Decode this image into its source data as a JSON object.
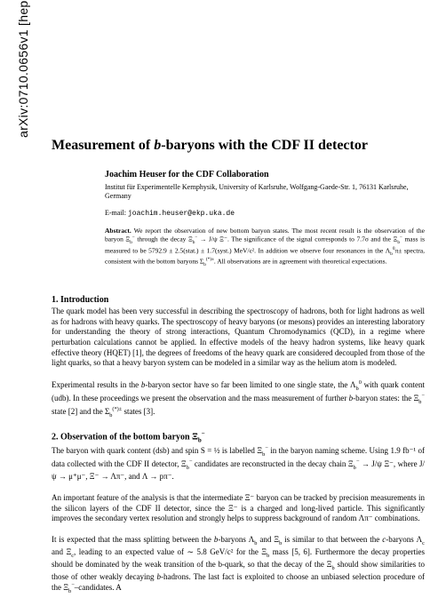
{
  "arxiv_id": "arXiv:0710.0656v1  [hep-ex]  2 Oct 2007",
  "title_prefix": "Measurement of ",
  "title_italic": "b",
  "title_suffix": "-baryons with the CDF II detector",
  "authors": "Joachim Heuser for the CDF Collaboration",
  "affiliation": "Institut für Experimentelle Kernphysik, University of Karlsruhe, Wolfgang-Gaede-Str. 1, 76131 Karlsruhe, Germany",
  "email_label": "E-mail: ",
  "email": "joachim.heuser@ekp.uka.de",
  "abstract_label": "Abstract.",
  "abstract_body": "   We report the observation of new bottom baryon states. The most recent result is the observation of the baryon Ξ",
  "abstract_body2": " through the decay Ξ",
  "abstract_body3": " → J/ψ Ξ⁻. The significance of the signal corresponds to 7.7σ and the Ξ",
  "abstract_body4": " mass is measured to be 5792.9 ± 2.5(stat.) ± 1.7(syst.) MeV/c². In addition we observe four resonances in the Λ",
  "abstract_body5": "π± spectra, consistent with the bottom baryons Σ",
  "abstract_body6": ". All observations are in agreement with theoretical expectations.",
  "section1_heading": "1. Introduction",
  "section1_p1a": "The quark model has been very successful in describing the spectroscopy of hadrons, both for light hadrons as well as for hadrons with heavy quarks. The spectroscopy of heavy baryons (or mesons) provides an interesting laboratory for understanding the theory of strong interactions, Quantum Chromodynamics (QCD), in a regime where perturbation calculations cannot be applied. In effective models of the heavy hadron systems, like heavy quark effective theory (HQET) [1], the degrees of freedoms of the heavy quark are considered decoupled from those of the light quarks, so that a heavy baryon system can be modeled in a similar way as the helium atom is modeled.",
  "section1_p2a": "Experimental results in the ",
  "section1_p2b": "-baryon sector have so far been limited to one single state, the Λ",
  "section1_p2c": " with quark content (udb). In these proceedings we present the observation and the mass measurement of further ",
  "section1_p2d": "-baryon states: the Ξ",
  "section1_p2e": " state [2] and the Σ",
  "section1_p2f": " states [3].",
  "section2_heading_a": "2. Observation of the bottom baryon ",
  "section2_heading_b": "Ξ",
  "section2_p1a": "The baryon with quark content (dsb) and spin S = ½ is labelled Ξ",
  "section2_p1b": " in the baryon naming scheme. Using 1.9 fb⁻¹ of data collected with the CDF II detector, Ξ",
  "section2_p1c": " candidates are reconstructed in the decay chain Ξ",
  "section2_p1d": " → J/ψ Ξ⁻, where J/ψ → μ⁺μ⁻, Ξ⁻ → Λπ⁻, and Λ → pπ⁻.",
  "section2_p2a": "An important feature of the analysis is that the intermediate Ξ⁻ baryon can be tracked by precision measurements in the silicon layers of the CDF II detector, since the Ξ⁻ is a charged and long-lived particle. This significantly improves the secondary vertex resolution and strongly helps to suppress background of random Λπ⁻ combinations.",
  "section2_p3a": "It is expected that the mass splitting between the ",
  "section2_p3b": "-baryons Λ",
  "section2_p3c": " and Ξ",
  "section2_p3d": " is similar to that between the ",
  "section2_p3e": "-baryons Λ",
  "section2_p3f": " and Ξ",
  "section2_p3g": ", leading to an expected value of ∼ 5.8 GeV/c² for the Ξ",
  "section2_p3h": " mass [5, 6]. Furthermore the decay properties should be dominated by the weak transition of the b-quark, so that the decay of the Ξ",
  "section2_p3i": " should show similarities to those of other weakly decaying ",
  "section2_p3j": "-hadrons. The last fact is exploited to choose an unbiased selection procedure of the Ξ",
  "section2_p3k": "–candidates. A"
}
